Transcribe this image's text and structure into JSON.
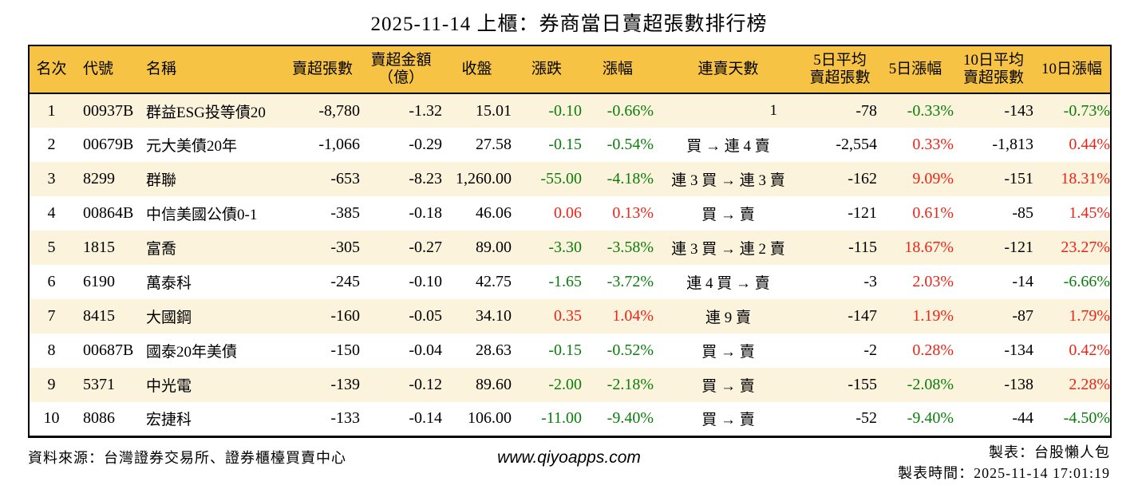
{
  "title": "2025-11-14 上櫃：券商當日賣超張數排行榜",
  "colors": {
    "header_bg": "#f6c344",
    "row_alt_bg": "#fcf3dc",
    "up_red": "#eb2418",
    "down_green": "#0a7d0a"
  },
  "chart_data": {
    "type": "table",
    "title": "2025-11-14 上櫃：券商當日賣超張數排行榜"
  },
  "table": {
    "headers": [
      {
        "key": "rank",
        "label": "名次"
      },
      {
        "key": "code",
        "label": "代號"
      },
      {
        "key": "name",
        "label": "名稱"
      },
      {
        "key": "sell_volume",
        "label": "賣超張數"
      },
      {
        "key": "sell_amount",
        "label": "賣超金額\n（億）"
      },
      {
        "key": "close",
        "label": "收盤"
      },
      {
        "key": "change",
        "label": "漲跌"
      },
      {
        "key": "change_pct",
        "label": "漲幅"
      },
      {
        "key": "streak",
        "label": "連賣天數"
      },
      {
        "key": "avg5",
        "label": "5日平均\n賣超張數"
      },
      {
        "key": "pct5",
        "label": "5日漲幅"
      },
      {
        "key": "avg10",
        "label": "10日平均\n賣超張數"
      },
      {
        "key": "pct10",
        "label": "10日漲幅"
      }
    ],
    "rows": [
      {
        "rank": "1",
        "code": "00937B",
        "name": "群益ESG投等債20",
        "sell_volume": "-8,780",
        "sell_amount": "-1.32",
        "close": "15.01",
        "change": "-0.10",
        "change_pct": "-0.66%",
        "change_color": "green",
        "streak": "1",
        "streak_numeric": true,
        "avg5": "-78",
        "pct5": "-0.33%",
        "pct5_color": "green",
        "avg10": "-143",
        "pct10": "-0.73%",
        "pct10_color": "green"
      },
      {
        "rank": "2",
        "code": "00679B",
        "name": "元大美債20年",
        "sell_volume": "-1,066",
        "sell_amount": "-0.29",
        "close": "27.58",
        "change": "-0.15",
        "change_pct": "-0.54%",
        "change_color": "green",
        "streak": "買 → 連 4 賣",
        "streak_numeric": false,
        "avg5": "-2,554",
        "pct5": "0.33%",
        "pct5_color": "red",
        "avg10": "-1,813",
        "pct10": "0.44%",
        "pct10_color": "red"
      },
      {
        "rank": "3",
        "code": "8299",
        "name": "群聯",
        "sell_volume": "-653",
        "sell_amount": "-8.23",
        "close": "1,260.00",
        "change": "-55.00",
        "change_pct": "-4.18%",
        "change_color": "green",
        "streak": "連 3 買 → 連 3 賣",
        "streak_numeric": false,
        "avg5": "-162",
        "pct5": "9.09%",
        "pct5_color": "red",
        "avg10": "-151",
        "pct10": "18.31%",
        "pct10_color": "red"
      },
      {
        "rank": "4",
        "code": "00864B",
        "name": "中信美國公債0-1",
        "sell_volume": "-385",
        "sell_amount": "-0.18",
        "close": "46.06",
        "change": "0.06",
        "change_pct": "0.13%",
        "change_color": "red",
        "streak": "買 → 賣",
        "streak_numeric": false,
        "avg5": "-121",
        "pct5": "0.61%",
        "pct5_color": "red",
        "avg10": "-85",
        "pct10": "1.45%",
        "pct10_color": "red"
      },
      {
        "rank": "5",
        "code": "1815",
        "name": "富喬",
        "sell_volume": "-305",
        "sell_amount": "-0.27",
        "close": "89.00",
        "change": "-3.30",
        "change_pct": "-3.58%",
        "change_color": "green",
        "streak": "連 3 買 → 連 2 賣",
        "streak_numeric": false,
        "avg5": "-115",
        "pct5": "18.67%",
        "pct5_color": "red",
        "avg10": "-121",
        "pct10": "23.27%",
        "pct10_color": "red"
      },
      {
        "rank": "6",
        "code": "6190",
        "name": "萬泰科",
        "sell_volume": "-245",
        "sell_amount": "-0.10",
        "close": "42.75",
        "change": "-1.65",
        "change_pct": "-3.72%",
        "change_color": "green",
        "streak": "連 4 買 → 賣",
        "streak_numeric": false,
        "avg5": "-3",
        "pct5": "2.03%",
        "pct5_color": "red",
        "avg10": "-14",
        "pct10": "-6.66%",
        "pct10_color": "green"
      },
      {
        "rank": "7",
        "code": "8415",
        "name": "大國鋼",
        "sell_volume": "-160",
        "sell_amount": "-0.05",
        "close": "34.10",
        "change": "0.35",
        "change_pct": "1.04%",
        "change_color": "red",
        "streak": "連 9 賣",
        "streak_numeric": false,
        "avg5": "-147",
        "pct5": "1.19%",
        "pct5_color": "red",
        "avg10": "-87",
        "pct10": "1.79%",
        "pct10_color": "red"
      },
      {
        "rank": "8",
        "code": "00687B",
        "name": "國泰20年美債",
        "sell_volume": "-150",
        "sell_amount": "-0.04",
        "close": "28.63",
        "change": "-0.15",
        "change_pct": "-0.52%",
        "change_color": "green",
        "streak": "買 → 賣",
        "streak_numeric": false,
        "avg5": "-2",
        "pct5": "0.28%",
        "pct5_color": "red",
        "avg10": "-134",
        "pct10": "0.42%",
        "pct10_color": "red"
      },
      {
        "rank": "9",
        "code": "5371",
        "name": "中光電",
        "sell_volume": "-139",
        "sell_amount": "-0.12",
        "close": "89.60",
        "change": "-2.00",
        "change_pct": "-2.18%",
        "change_color": "green",
        "streak": "買 → 賣",
        "streak_numeric": false,
        "avg5": "-155",
        "pct5": "-2.08%",
        "pct5_color": "green",
        "avg10": "-138",
        "pct10": "2.28%",
        "pct10_color": "red"
      },
      {
        "rank": "10",
        "code": "8086",
        "name": "宏捷科",
        "sell_volume": "-133",
        "sell_amount": "-0.14",
        "close": "106.00",
        "change": "-11.00",
        "change_pct": "-9.40%",
        "change_color": "green",
        "streak": "買 → 賣",
        "streak_numeric": false,
        "avg5": "-52",
        "pct5": "-9.40%",
        "pct5_color": "green",
        "avg10": "-44",
        "pct10": "-4.50%",
        "pct10_color": "green"
      }
    ]
  },
  "footer": {
    "source": "資料來源：台灣證券交易所、證券櫃檯買賣中心",
    "website": "www.qiyoapps.com",
    "made_by": "製表：台股懶人包",
    "made_time": "製表時間：2025-11-14 17:01:19"
  }
}
